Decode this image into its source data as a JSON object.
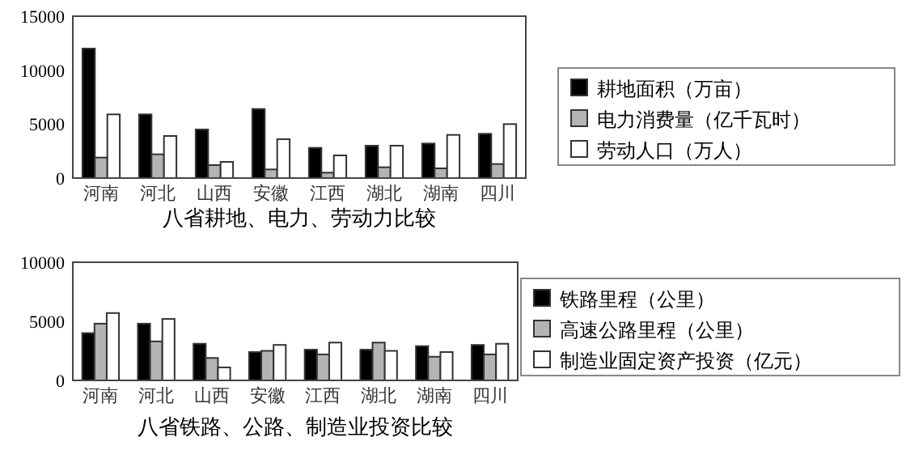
{
  "chart_data": [
    {
      "type": "bar",
      "title": "八省耕地、电力、劳动力比较",
      "categories": [
        "河南",
        "河北",
        "山西",
        "安徽",
        "江西",
        "湖北",
        "湖南",
        "四川"
      ],
      "series": [
        {
          "name": "耕地面积（万亩）",
          "color": "#000000",
          "values": [
            12000,
            5900,
            4500,
            6400,
            2800,
            3000,
            3200,
            4100
          ]
        },
        {
          "name": "电力消费量（亿千瓦时）",
          "color": "#b4b4b4",
          "values": [
            1900,
            2200,
            1200,
            800,
            500,
            1000,
            900,
            1300
          ]
        },
        {
          "name": "劳动人口（万人）",
          "color": "#ffffff",
          "values": [
            5900,
            3900,
            1500,
            3600,
            2100,
            3000,
            4000,
            5000
          ]
        }
      ],
      "ylim": [
        0,
        15000
      ],
      "yticks": [
        0,
        5000,
        10000,
        15000
      ],
      "legend": "right",
      "grid": false
    },
    {
      "type": "bar",
      "title": "八省铁路、公路、制造业投资比较",
      "categories": [
        "河南",
        "河北",
        "山西",
        "安徽",
        "江西",
        "湖北",
        "湖南",
        "四川"
      ],
      "series": [
        {
          "name": "铁路里程（公里）",
          "color": "#000000",
          "values": [
            4000,
            4800,
            3100,
            2400,
            2600,
            2600,
            2900,
            3000
          ]
        },
        {
          "name": "高速公路里程（公里）",
          "color": "#b4b4b4",
          "values": [
            4800,
            3300,
            1900,
            2500,
            2200,
            3200,
            2000,
            2200
          ]
        },
        {
          "name": "制造业固定资产投资（亿元）",
          "color": "#ffffff",
          "values": [
            5700,
            5200,
            1100,
            3000,
            3200,
            2500,
            2400,
            3100
          ]
        }
      ],
      "ylim": [
        0,
        10000
      ],
      "yticks": [
        0,
        5000,
        10000
      ],
      "legend": "right",
      "grid": false
    }
  ]
}
